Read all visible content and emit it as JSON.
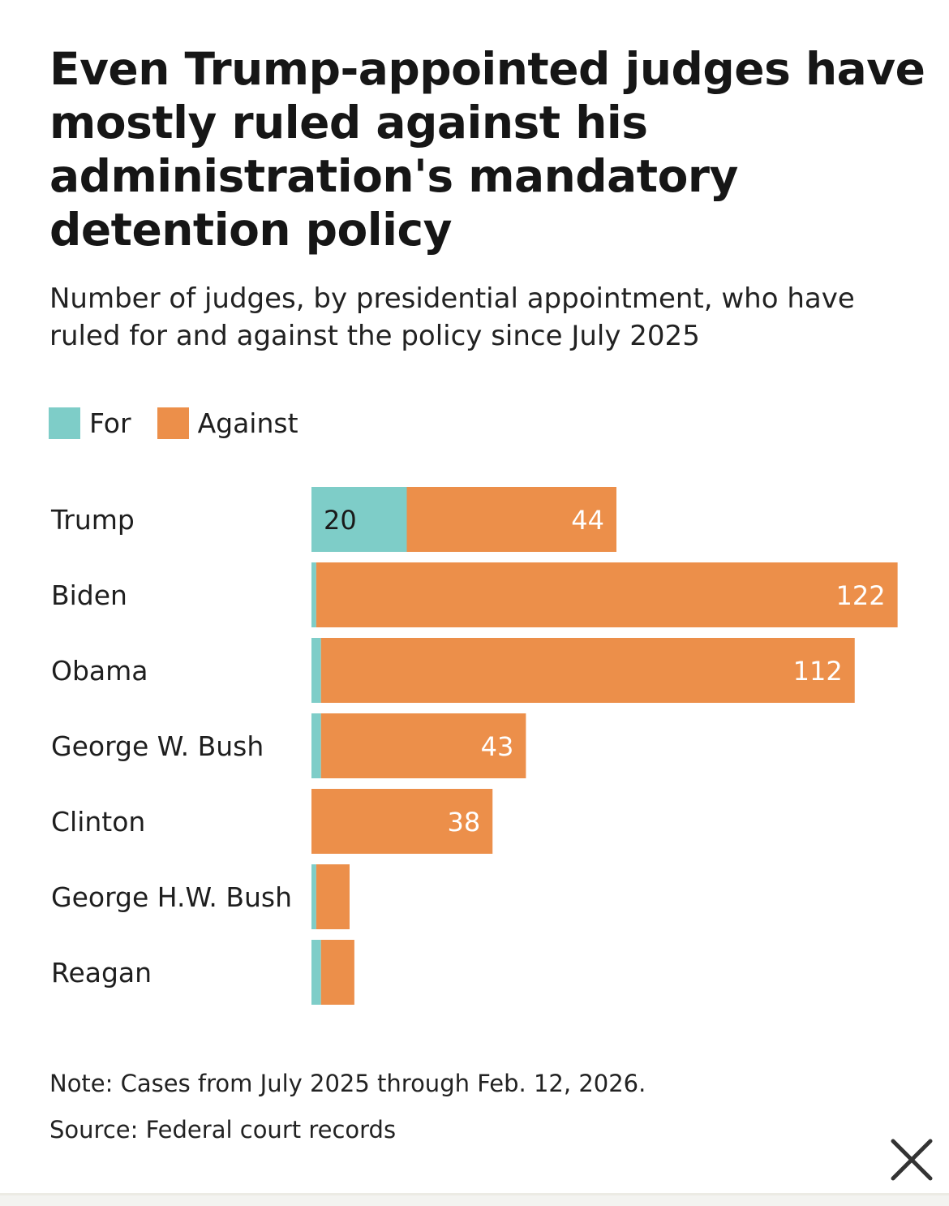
{
  "header": {
    "title": "Even Trump-appointed judges have mostly ruled against his administration's mandatory detention policy",
    "subtitle": "Number of judges, by presidential appointment, who have ruled for and against the policy since July 2025"
  },
  "legend": [
    {
      "label": "For",
      "color": "#7ecdc8"
    },
    {
      "label": "Against",
      "color": "#ec8f4a"
    }
  ],
  "chart_data": {
    "type": "bar",
    "orientation": "horizontal",
    "stacked": true,
    "title": "Even Trump-appointed judges have mostly ruled against his administration's mandatory detention policy",
    "subtitle": "Number of judges, by presidential appointment, who have ruled for and against the policy since July 2025",
    "categories": [
      "Trump",
      "Biden",
      "Obama",
      "George W. Bush",
      "Clinton",
      "George H.W. Bush",
      "Reagan"
    ],
    "series": [
      {
        "name": "For",
        "color": "#7ecdc8",
        "values": [
          20,
          1,
          2,
          2,
          0,
          1,
          2
        ],
        "labels": [
          "20",
          "",
          "",
          "",
          "",
          "",
          ""
        ]
      },
      {
        "name": "Against",
        "color": "#ec8f4a",
        "values": [
          44,
          122,
          112,
          43,
          38,
          7,
          7
        ],
        "labels": [
          "44",
          "122",
          "112",
          "43",
          "38",
          "",
          ""
        ]
      }
    ],
    "xlim": [
      0,
      123
    ],
    "grid": false,
    "legend_position": "top-left",
    "xlabel": "",
    "ylabel": ""
  },
  "footer": {
    "note": "Note: Cases from July 2025 through Feb. 12, 2026.",
    "source": "Source: Federal court records"
  },
  "controls": {
    "close_icon": "close-icon"
  }
}
